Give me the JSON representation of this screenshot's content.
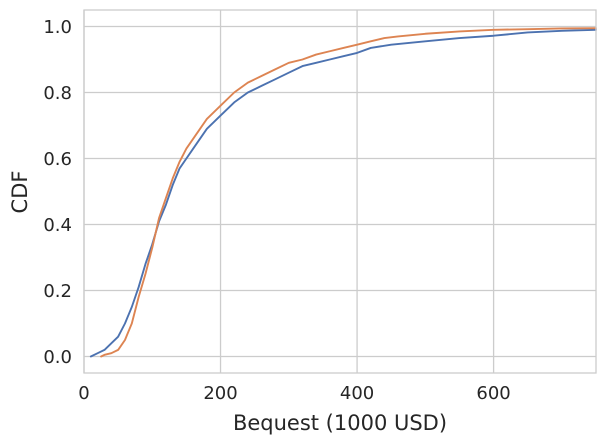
{
  "chart_data": {
    "type": "line",
    "title": "",
    "xlabel": "Bequest (1000 USD)",
    "ylabel": "CDF",
    "xlim": [
      0,
      750
    ],
    "ylim": [
      -0.05,
      1.05
    ],
    "xticks": [
      0,
      200,
      400,
      600
    ],
    "xtick_labels": [
      "0",
      "200",
      "400",
      "600"
    ],
    "yticks": [
      0.0,
      0.2,
      0.4,
      0.6,
      0.8,
      1.0
    ],
    "ytick_labels": [
      "0.0",
      "0.2",
      "0.4",
      "0.6",
      "0.8",
      "1.0"
    ],
    "grid": true,
    "legend": "none",
    "series": [
      {
        "color": "#4c72b0",
        "x": [
          10,
          20,
          30,
          40,
          50,
          60,
          70,
          80,
          90,
          100,
          110,
          120,
          130,
          140,
          150,
          160,
          170,
          180,
          190,
          200,
          220,
          240,
          260,
          280,
          300,
          320,
          340,
          360,
          380,
          400,
          420,
          450,
          500,
          550,
          600,
          650,
          700,
          750
        ],
        "y": [
          0.0,
          0.01,
          0.02,
          0.04,
          0.06,
          0.1,
          0.15,
          0.21,
          0.28,
          0.34,
          0.41,
          0.46,
          0.52,
          0.57,
          0.6,
          0.63,
          0.66,
          0.69,
          0.71,
          0.73,
          0.77,
          0.8,
          0.82,
          0.84,
          0.86,
          0.88,
          0.89,
          0.9,
          0.91,
          0.92,
          0.935,
          0.945,
          0.955,
          0.965,
          0.972,
          0.982,
          0.987,
          0.99
        ]
      },
      {
        "color": "#dd8452",
        "x": [
          25,
          30,
          40,
          50,
          60,
          70,
          80,
          90,
          100,
          110,
          120,
          130,
          140,
          150,
          160,
          170,
          180,
          190,
          200,
          220,
          240,
          260,
          280,
          300,
          320,
          340,
          360,
          380,
          400,
          420,
          440,
          460,
          500,
          550,
          600,
          650,
          700,
          750
        ],
        "y": [
          0.0,
          0.005,
          0.01,
          0.02,
          0.05,
          0.1,
          0.18,
          0.25,
          0.33,
          0.42,
          0.48,
          0.54,
          0.59,
          0.63,
          0.66,
          0.69,
          0.72,
          0.74,
          0.76,
          0.8,
          0.83,
          0.85,
          0.87,
          0.89,
          0.9,
          0.915,
          0.925,
          0.935,
          0.945,
          0.955,
          0.965,
          0.97,
          0.978,
          0.985,
          0.99,
          0.992,
          0.994,
          0.995
        ]
      }
    ]
  }
}
